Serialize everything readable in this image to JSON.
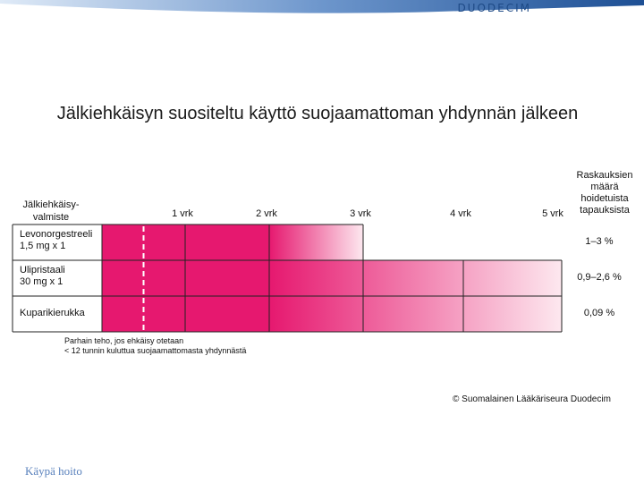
{
  "header": {
    "brand": "DUODECIM"
  },
  "footer": {
    "copyright": "© Suomalainen Lääkäriseura Duodecim",
    "brand": "Käypä hoito"
  },
  "chart_data": {
    "type": "bar",
    "title": "Jälkiehkäisyn suositeltu käyttö suojaamattoman yhdynnän jälkeen",
    "row_header": "Jälkiehkäisy-\nvalmiste",
    "right_header": "Raskauksien\nmäärä\nhoidetuista\ntapauksista",
    "ticks": [
      "1 vrk",
      "2 vrk",
      "3 vrk",
      "4 vrk",
      "5 vrk"
    ],
    "xlim_days": [
      0,
      5
    ],
    "best_effect_hours": 12,
    "rows": [
      {
        "label": "Levonorgestreeli\n1,5 mg x 1",
        "max_days": 3,
        "pregnancy_rate": "1–3 %"
      },
      {
        "label": "Ulipristaali\n30 mg x 1",
        "max_days": 5,
        "pregnancy_rate": "0,9–2,6 %"
      },
      {
        "label": "Kuparikierukka",
        "max_days": 5,
        "pregnancy_rate": "0,09 %"
      }
    ],
    "note": "Parhain teho, jos ehkäisy otetaan\n< 12 tunnin kuluttua suojaamattomasta yhdynnästä",
    "colors": {
      "strong": "#e6186f",
      "fade": "#fde8ef",
      "grid": "#222222"
    }
  }
}
